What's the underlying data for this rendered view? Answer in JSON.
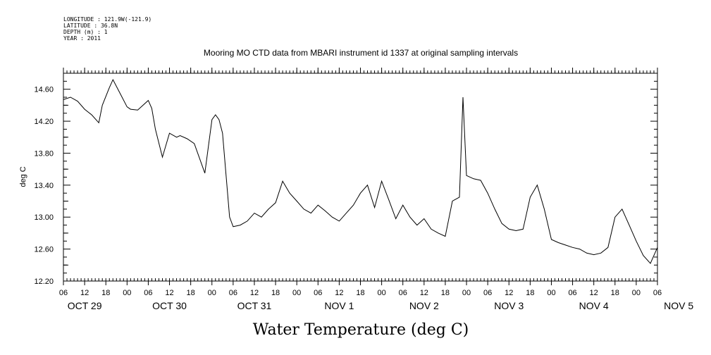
{
  "header": {
    "longitude": "LONGITUDE : 121.9W(-121.9)",
    "latitude": "LATITUDE : 36.8N",
    "depth": "DEPTH (m) : 1",
    "year": "YEAR : 2011"
  },
  "chart_data": {
    "type": "line",
    "title": "Mooring MO CTD data from MBARI instrument id 1337 at original sampling intervals",
    "xlabel": "Water Temperature (deg C)",
    "ylabel": "deg C",
    "xlim": [
      "2011-10-29 06:00",
      "2011-11-05 06:00"
    ],
    "ylim": [
      12.2,
      14.8
    ],
    "yticks": [
      "14.60",
      "14.20",
      "13.80",
      "13.40",
      "13.00",
      "12.60",
      "12.20"
    ],
    "hour_ticks": [
      "06",
      "12",
      "18",
      "00",
      "06",
      "12",
      "18",
      "00",
      "06",
      "12",
      "18",
      "00",
      "06",
      "12",
      "18",
      "00",
      "06",
      "12",
      "18",
      "00",
      "06",
      "12",
      "18",
      "00",
      "06",
      "12",
      "18",
      "00",
      "06"
    ],
    "date_labels": [
      "OCT 29",
      "OCT 30",
      "OCT 31",
      "NOV  1",
      "NOV  2",
      "NOV  3",
      "NOV  4",
      "NOV  5"
    ],
    "grid": false,
    "series": [
      {
        "x": [
          "2011-10-29 06:00",
          "2011-10-29 08:00",
          "2011-10-29 10:00",
          "2011-10-29 12:00",
          "2011-10-29 14:00",
          "2011-10-29 16:00",
          "2011-10-29 17:00",
          "2011-10-29 19:00",
          "2011-10-29 20:00",
          "2011-10-29 22:00",
          "2011-10-30 00:00",
          "2011-10-30 01:00",
          "2011-10-30 03:00",
          "2011-10-30 06:00",
          "2011-10-30 07:00",
          "2011-10-30 08:00",
          "2011-10-30 10:00",
          "2011-10-30 12:00",
          "2011-10-30 14:00",
          "2011-10-30 15:00",
          "2011-10-30 17:00",
          "2011-10-30 19:00",
          "2011-10-30 22:00",
          "2011-10-31 00:00",
          "2011-10-31 01:00",
          "2011-10-31 02:00",
          "2011-10-31 03:00",
          "2011-10-31 05:00",
          "2011-10-31 06:00",
          "2011-10-31 08:00",
          "2011-10-31 10:00",
          "2011-10-31 12:00",
          "2011-10-31 14:00",
          "2011-10-31 16:00",
          "2011-10-31 18:00",
          "2011-10-31 20:00",
          "2011-10-31 22:00",
          "2011-11-01 00:00",
          "2011-11-01 02:00",
          "2011-11-01 04:00",
          "2011-11-01 06:00",
          "2011-11-01 08:00",
          "2011-11-01 10:00",
          "2011-11-01 12:00",
          "2011-11-01 14:00",
          "2011-11-01 16:00",
          "2011-11-01 18:00",
          "2011-11-01 20:00",
          "2011-11-01 22:00",
          "2011-11-02 00:00",
          "2011-11-02 02:00",
          "2011-11-02 04:00",
          "2011-11-02 06:00",
          "2011-11-02 08:00",
          "2011-11-02 10:00",
          "2011-11-02 12:00",
          "2011-11-02 14:00",
          "2011-11-02 16:00",
          "2011-11-02 18:00",
          "2011-11-02 20:00",
          "2011-11-02 22:00",
          "2011-11-02 23:00",
          "2011-11-03 00:00",
          "2011-11-03 02:00",
          "2011-11-03 04:00",
          "2011-11-03 06:00",
          "2011-11-03 08:00",
          "2011-11-03 10:00",
          "2011-11-03 12:00",
          "2011-11-03 14:00",
          "2011-11-03 16:00",
          "2011-11-03 18:00",
          "2011-11-03 20:00",
          "2011-11-03 22:00",
          "2011-11-04 00:00",
          "2011-11-04 02:00",
          "2011-11-04 04:00",
          "2011-11-04 06:00",
          "2011-11-04 08:00",
          "2011-11-04 10:00",
          "2011-11-04 12:00",
          "2011-11-04 14:00",
          "2011-11-04 16:00",
          "2011-11-04 18:00",
          "2011-11-04 20:00",
          "2011-11-04 22:00",
          "2011-11-05 00:00",
          "2011-11-05 02:00",
          "2011-11-05 04:00",
          "2011-11-05 06:00"
        ],
        "values": [
          14.47,
          14.5,
          14.45,
          14.35,
          14.28,
          14.18,
          14.4,
          14.62,
          14.72,
          14.55,
          14.38,
          14.35,
          14.34,
          14.46,
          14.36,
          14.1,
          13.75,
          14.05,
          14.0,
          14.02,
          13.98,
          13.92,
          13.55,
          14.22,
          14.28,
          14.22,
          14.05,
          13.0,
          12.88,
          12.9,
          12.95,
          13.05,
          13.0,
          13.1,
          13.18,
          13.45,
          13.3,
          13.2,
          13.1,
          13.05,
          13.15,
          13.08,
          13.0,
          12.95,
          13.05,
          13.15,
          13.3,
          13.4,
          13.12,
          13.45,
          13.22,
          12.98,
          13.15,
          13.0,
          12.9,
          12.98,
          12.85,
          12.8,
          12.76,
          13.2,
          13.25,
          14.5,
          13.52,
          13.48,
          13.46,
          13.3,
          13.1,
          12.92,
          12.85,
          12.83,
          12.85,
          13.25,
          13.4,
          13.1,
          12.72,
          12.68,
          12.65,
          12.62,
          12.6,
          12.55,
          12.53,
          12.55,
          12.62,
          13.0,
          13.1,
          12.9,
          12.7,
          12.52,
          12.42,
          12.62
        ]
      }
    ]
  }
}
